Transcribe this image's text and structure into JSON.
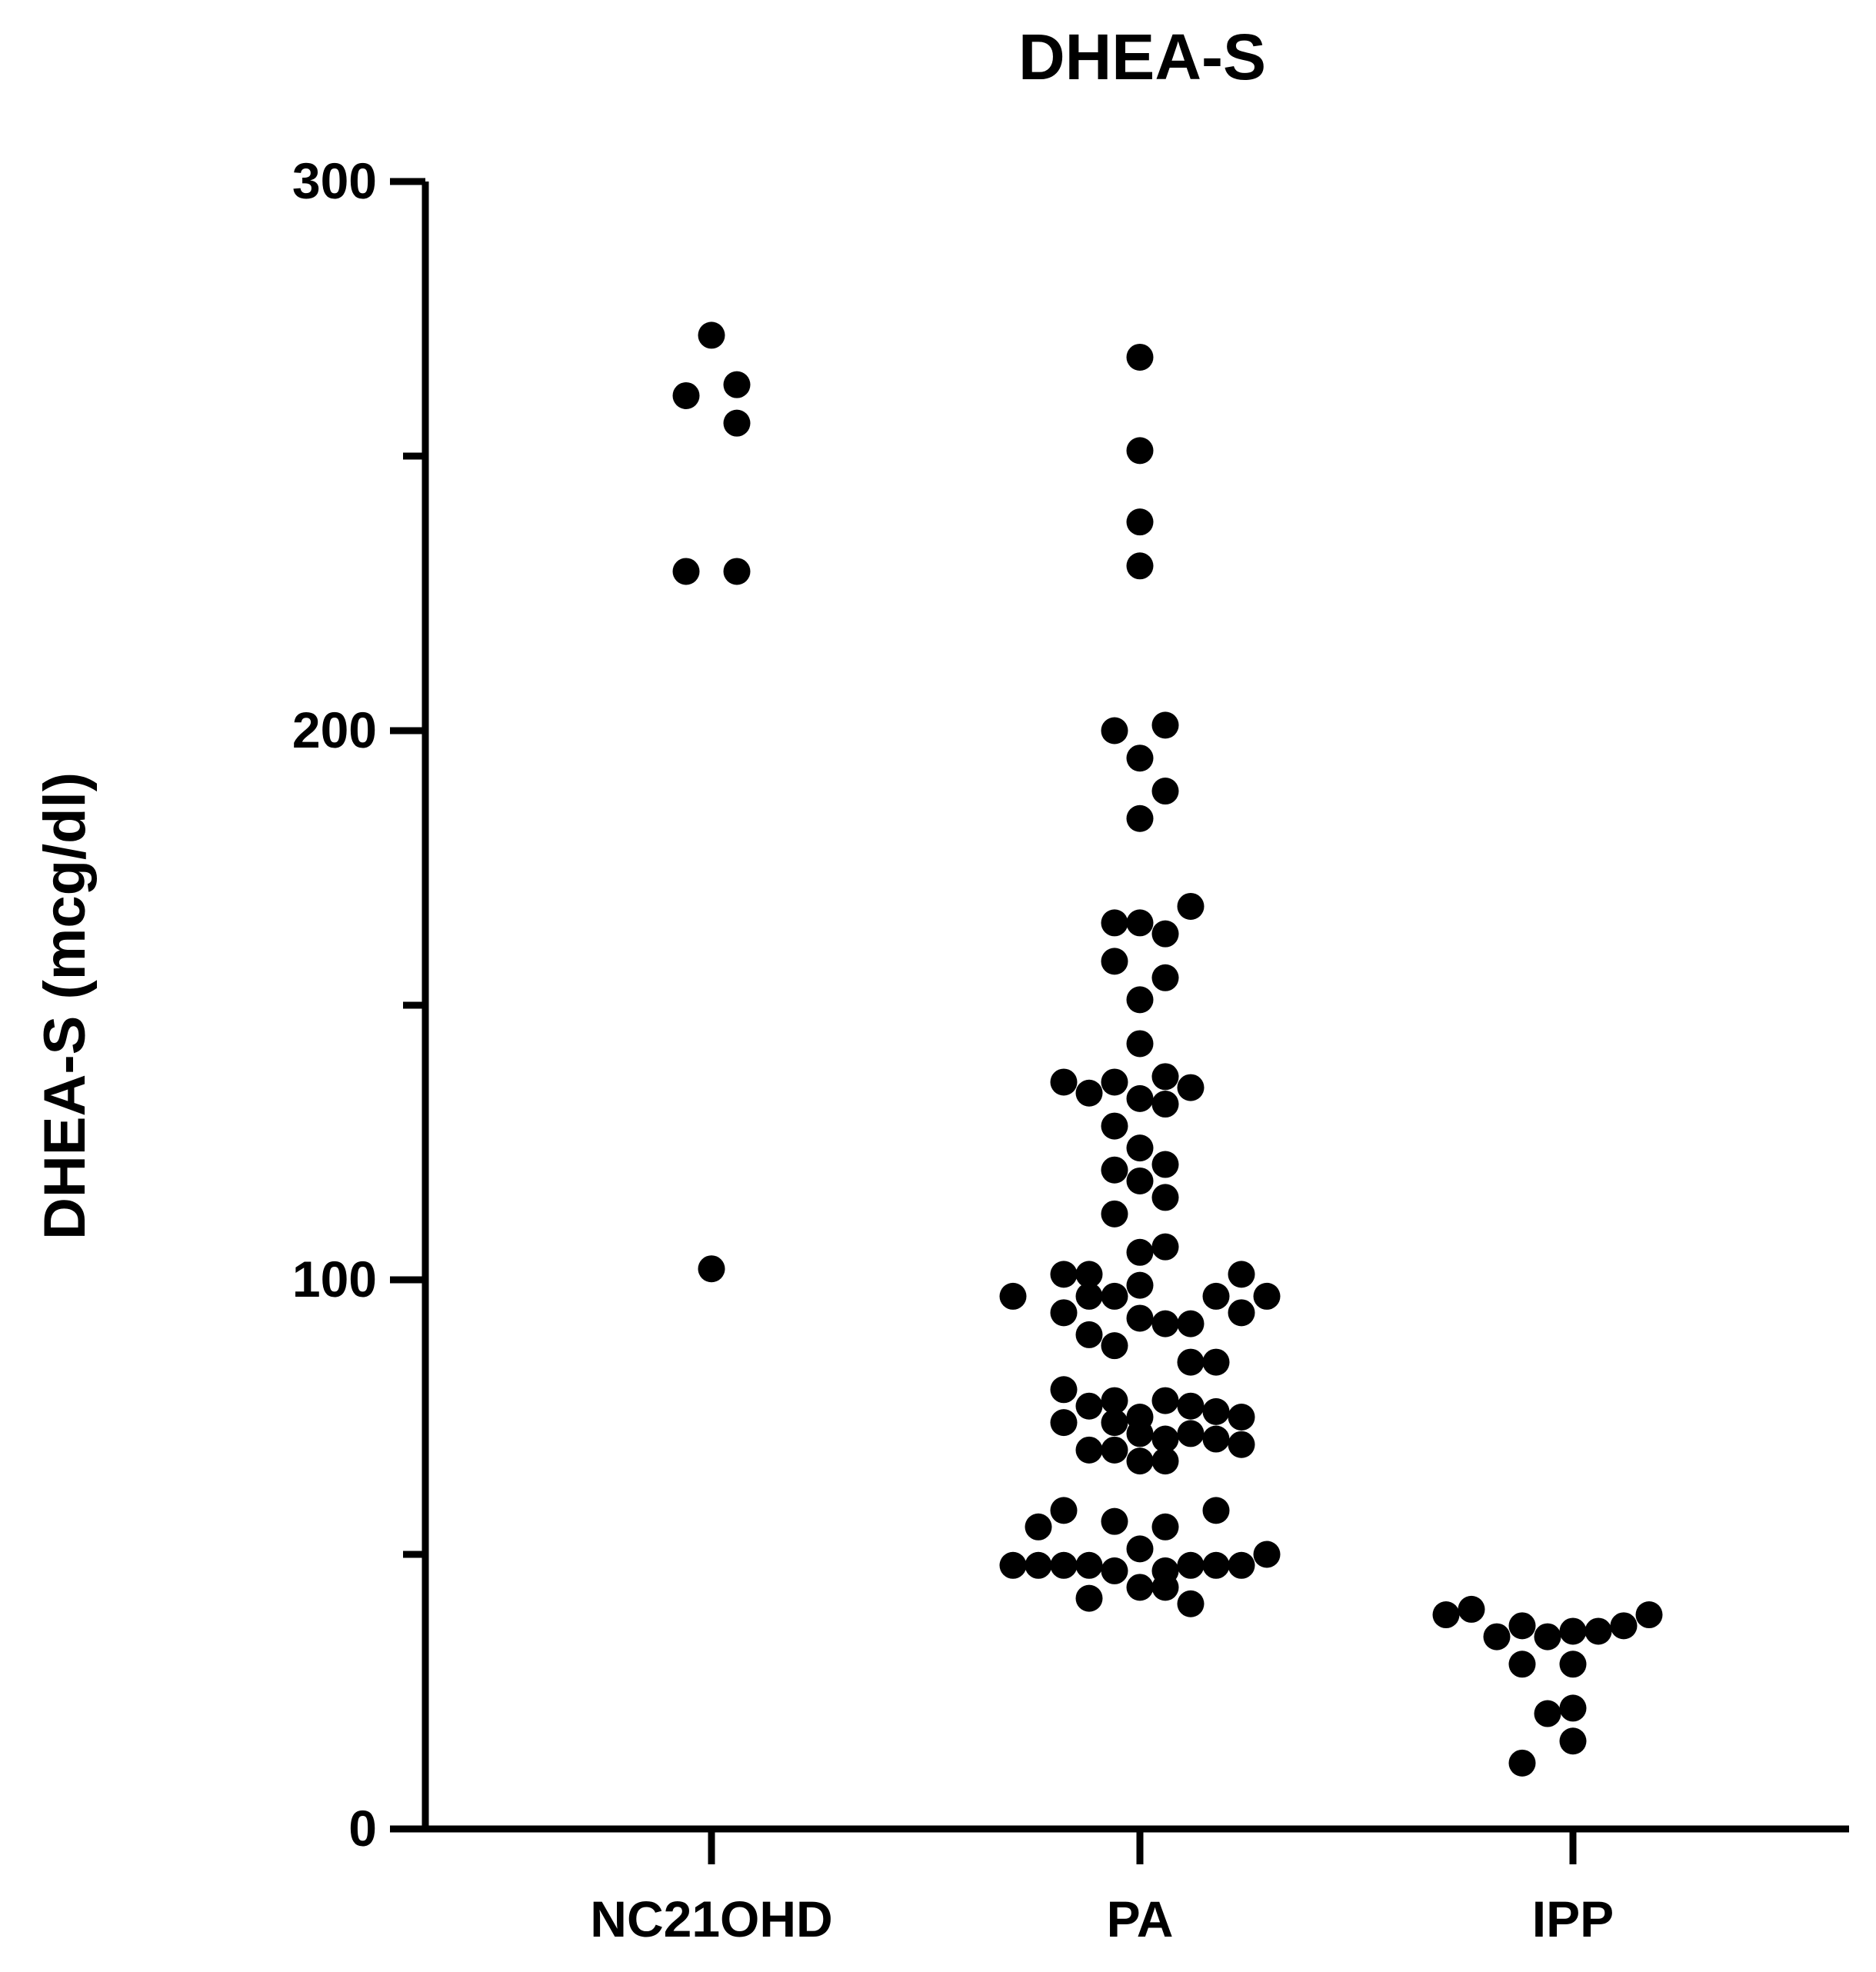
{
  "chart_data": {
    "type": "scatter",
    "title": "DHEA-S",
    "xlabel": "",
    "ylabel": "DHEA-S (mcg/dl)",
    "ylim": [
      0,
      300
    ],
    "y_ticks": [
      0,
      100,
      200,
      300
    ],
    "y_minor_ticks": [
      50,
      150,
      250
    ],
    "grid": false,
    "marker_color": "#000000",
    "categories": [
      "NC21OHD",
      "PA",
      "IPP"
    ],
    "series": [
      {
        "category": "NC21OHD",
        "points": [
          {
            "x": 0,
            "y": 272
          },
          {
            "x": -1,
            "y": 261
          },
          {
            "x": 1,
            "y": 263
          },
          {
            "x": 1,
            "y": 256
          },
          {
            "x": -1,
            "y": 229
          },
          {
            "x": 1,
            "y": 229
          },
          {
            "x": 0,
            "y": 102
          }
        ]
      },
      {
        "category": "PA",
        "points": [
          {
            "x": 0,
            "y": 268
          },
          {
            "x": 0,
            "y": 251
          },
          {
            "x": 0,
            "y": 238
          },
          {
            "x": 0,
            "y": 230
          },
          {
            "x": -1,
            "y": 200
          },
          {
            "x": 1,
            "y": 201
          },
          {
            "x": 0,
            "y": 195
          },
          {
            "x": 1,
            "y": 189
          },
          {
            "x": 0,
            "y": 184
          },
          {
            "x": 2,
            "y": 168
          },
          {
            "x": -1,
            "y": 165
          },
          {
            "x": 0,
            "y": 165
          },
          {
            "x": 1,
            "y": 163
          },
          {
            "x": -1,
            "y": 158
          },
          {
            "x": 1,
            "y": 155
          },
          {
            "x": 0,
            "y": 151
          },
          {
            "x": 0,
            "y": 143
          },
          {
            "x": -3,
            "y": 136
          },
          {
            "x": -2,
            "y": 134
          },
          {
            "x": -1,
            "y": 136
          },
          {
            "x": 1,
            "y": 137
          },
          {
            "x": 2,
            "y": 135
          },
          {
            "x": 0,
            "y": 133
          },
          {
            "x": 1,
            "y": 132
          },
          {
            "x": -1,
            "y": 128
          },
          {
            "x": 0,
            "y": 124
          },
          {
            "x": -1,
            "y": 120
          },
          {
            "x": 1,
            "y": 121
          },
          {
            "x": 0,
            "y": 118
          },
          {
            "x": 1,
            "y": 115
          },
          {
            "x": -1,
            "y": 112
          },
          {
            "x": 1,
            "y": 106
          },
          {
            "x": 0,
            "y": 105
          },
          {
            "x": -3,
            "y": 101
          },
          {
            "x": -2,
            "y": 101
          },
          {
            "x": 0,
            "y": 99
          },
          {
            "x": 4,
            "y": 101
          },
          {
            "x": -5,
            "y": 97
          },
          {
            "x": -2,
            "y": 97
          },
          {
            "x": -1,
            "y": 97
          },
          {
            "x": 3,
            "y": 97
          },
          {
            "x": 5,
            "y": 97
          },
          {
            "x": -3,
            "y": 94
          },
          {
            "x": 0,
            "y": 93
          },
          {
            "x": 1,
            "y": 92
          },
          {
            "x": 2,
            "y": 92
          },
          {
            "x": 4,
            "y": 94
          },
          {
            "x": -2,
            "y": 90
          },
          {
            "x": -1,
            "y": 88
          },
          {
            "x": 2,
            "y": 85
          },
          {
            "x": 3,
            "y": 85
          },
          {
            "x": -3,
            "y": 80
          },
          {
            "x": -1,
            "y": 78
          },
          {
            "x": -2,
            "y": 77
          },
          {
            "x": 1,
            "y": 78
          },
          {
            "x": 2,
            "y": 77
          },
          {
            "x": 3,
            "y": 76
          },
          {
            "x": 0,
            "y": 75
          },
          {
            "x": 4,
            "y": 75
          },
          {
            "x": -3,
            "y": 74
          },
          {
            "x": -1,
            "y": 74
          },
          {
            "x": 0,
            "y": 72
          },
          {
            "x": 1,
            "y": 71
          },
          {
            "x": 2,
            "y": 72
          },
          {
            "x": 3,
            "y": 71
          },
          {
            "x": 4,
            "y": 70
          },
          {
            "x": -2,
            "y": 69
          },
          {
            "x": -1,
            "y": 69
          },
          {
            "x": 0,
            "y": 67
          },
          {
            "x": 1,
            "y": 67
          },
          {
            "x": -3,
            "y": 58
          },
          {
            "x": -4,
            "y": 55
          },
          {
            "x": -1,
            "y": 56
          },
          {
            "x": 1,
            "y": 55
          },
          {
            "x": 3,
            "y": 58
          },
          {
            "x": 0,
            "y": 51
          },
          {
            "x": 5,
            "y": 50
          },
          {
            "x": -5,
            "y": 48
          },
          {
            "x": -4,
            "y": 48
          },
          {
            "x": -3,
            "y": 48
          },
          {
            "x": -2,
            "y": 48
          },
          {
            "x": -1,
            "y": 47
          },
          {
            "x": 1,
            "y": 47
          },
          {
            "x": 2,
            "y": 48
          },
          {
            "x": 3,
            "y": 48
          },
          {
            "x": 4,
            "y": 48
          },
          {
            "x": 0,
            "y": 44
          },
          {
            "x": 1,
            "y": 44
          },
          {
            "x": -2,
            "y": 42
          },
          {
            "x": 2,
            "y": 41
          }
        ]
      },
      {
        "category": "IPP",
        "points": [
          {
            "x": -5,
            "y": 39
          },
          {
            "x": -4,
            "y": 40
          },
          {
            "x": -3,
            "y": 35
          },
          {
            "x": -2,
            "y": 37
          },
          {
            "x": -1,
            "y": 35
          },
          {
            "x": 0,
            "y": 36
          },
          {
            "x": 1,
            "y": 36
          },
          {
            "x": 2,
            "y": 37
          },
          {
            "x": 3,
            "y": 39
          },
          {
            "x": -2,
            "y": 30
          },
          {
            "x": 0,
            "y": 30
          },
          {
            "x": -1,
            "y": 21
          },
          {
            "x": 0,
            "y": 22
          },
          {
            "x": 0,
            "y": 16
          },
          {
            "x": -2,
            "y": 12
          }
        ]
      }
    ]
  }
}
